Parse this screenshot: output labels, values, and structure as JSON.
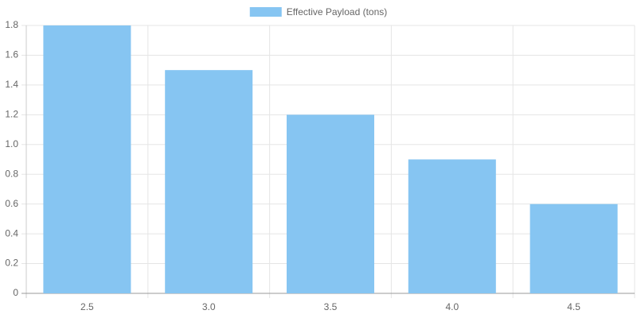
{
  "chart_data": {
    "type": "bar",
    "categories": [
      "2.5",
      "3.0",
      "3.5",
      "4.0",
      "4.5"
    ],
    "series": [
      {
        "name": "Effective Payload (tons)",
        "color": "#86c5f2",
        "values": [
          1.8,
          1.5,
          1.2,
          0.9,
          0.6
        ]
      }
    ],
    "ylim": [
      0,
      1.8
    ],
    "yticks": [
      0,
      0.2,
      0.4,
      0.6,
      0.8,
      {
        "value": 1,
        "label": "1.0"
      },
      1.2,
      1.4,
      1.6,
      1.8
    ],
    "grid": true,
    "legend": "top"
  }
}
